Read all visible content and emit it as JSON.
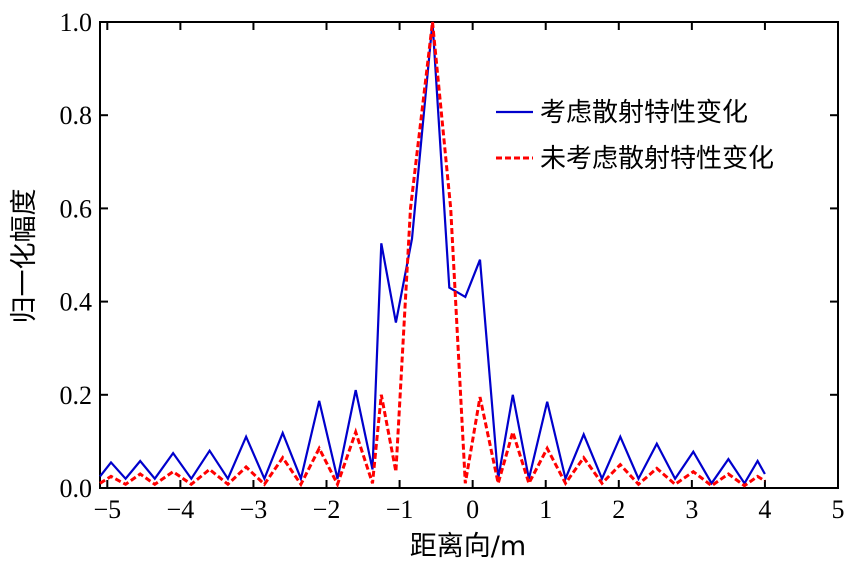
{
  "chart_data": {
    "type": "line",
    "xlabel": "距离向/m",
    "ylabel": "归一化幅度",
    "xlim": [
      -5.1,
      5.0
    ],
    "ylim": [
      0,
      1.0
    ],
    "xticks": [
      -5,
      -4,
      -3,
      -2,
      -1,
      0,
      1,
      2,
      3,
      4,
      5
    ],
    "xtick_labels": [
      "−5",
      "−4",
      "−3",
      "−2",
      "−1",
      "0",
      "1",
      "2",
      "3",
      "4",
      "5"
    ],
    "yticks": [
      0,
      0.2,
      0.4,
      0.6,
      0.8,
      1.0
    ],
    "ytick_labels": [
      "0.0",
      "0.2",
      "0.4",
      "0.6",
      "0.8",
      "1.0"
    ],
    "grid": false,
    "legend_position": "top-right",
    "series": [
      {
        "name": "考虑散射特性变化",
        "color": "#0000cc",
        "dash": "solid",
        "points": [
          [
            -5.1,
            0.025
          ],
          [
            -4.95,
            0.055
          ],
          [
            -4.75,
            0.02
          ],
          [
            -4.55,
            0.058
          ],
          [
            -4.35,
            0.02
          ],
          [
            -4.1,
            0.075
          ],
          [
            -3.85,
            0.02
          ],
          [
            -3.6,
            0.08
          ],
          [
            -3.35,
            0.02
          ],
          [
            -3.1,
            0.11
          ],
          [
            -2.85,
            0.02
          ],
          [
            -2.6,
            0.118
          ],
          [
            -2.35,
            0.02
          ],
          [
            -2.1,
            0.187
          ],
          [
            -1.85,
            0.02
          ],
          [
            -1.6,
            0.21
          ],
          [
            -1.37,
            0.04
          ],
          [
            -1.25,
            0.525
          ],
          [
            -1.05,
            0.355
          ],
          [
            -0.83,
            0.535
          ],
          [
            -0.55,
            1.0
          ],
          [
            -0.32,
            0.43
          ],
          [
            -0.1,
            0.41
          ],
          [
            0.1,
            0.49
          ],
          [
            0.35,
            0.02
          ],
          [
            0.55,
            0.2
          ],
          [
            0.77,
            0.02
          ],
          [
            1.02,
            0.185
          ],
          [
            1.27,
            0.02
          ],
          [
            1.52,
            0.115
          ],
          [
            1.77,
            0.02
          ],
          [
            2.02,
            0.11
          ],
          [
            2.27,
            0.02
          ],
          [
            2.52,
            0.095
          ],
          [
            2.77,
            0.02
          ],
          [
            3.02,
            0.078
          ],
          [
            3.27,
            0.01
          ],
          [
            3.5,
            0.062
          ],
          [
            3.72,
            0.01
          ],
          [
            3.9,
            0.058
          ],
          [
            4.0,
            0.03
          ]
        ]
      },
      {
        "name": "未考虑散射特性变化",
        "color": "#ff0000",
        "dash": "dashed",
        "points": [
          [
            -5.1,
            0.01
          ],
          [
            -4.95,
            0.025
          ],
          [
            -4.75,
            0.008
          ],
          [
            -4.55,
            0.03
          ],
          [
            -4.35,
            0.008
          ],
          [
            -4.1,
            0.035
          ],
          [
            -3.85,
            0.008
          ],
          [
            -3.6,
            0.04
          ],
          [
            -3.35,
            0.008
          ],
          [
            -3.1,
            0.045
          ],
          [
            -2.85,
            0.008
          ],
          [
            -2.6,
            0.065
          ],
          [
            -2.35,
            0.008
          ],
          [
            -2.1,
            0.085
          ],
          [
            -1.85,
            0.008
          ],
          [
            -1.6,
            0.12
          ],
          [
            -1.37,
            0.01
          ],
          [
            -1.25,
            0.2
          ],
          [
            -1.05,
            0.035
          ],
          [
            -0.85,
            0.6
          ],
          [
            -0.55,
            1.0
          ],
          [
            -0.3,
            0.6
          ],
          [
            -0.1,
            0.01
          ],
          [
            0.1,
            0.195
          ],
          [
            0.35,
            0.01
          ],
          [
            0.55,
            0.12
          ],
          [
            0.77,
            0.01
          ],
          [
            1.02,
            0.085
          ],
          [
            1.27,
            0.01
          ],
          [
            1.52,
            0.065
          ],
          [
            1.77,
            0.01
          ],
          [
            2.02,
            0.05
          ],
          [
            2.27,
            0.008
          ],
          [
            2.52,
            0.042
          ],
          [
            2.77,
            0.008
          ],
          [
            3.02,
            0.035
          ],
          [
            3.27,
            0.005
          ],
          [
            3.5,
            0.03
          ],
          [
            3.72,
            0.005
          ],
          [
            3.9,
            0.025
          ],
          [
            4.0,
            0.015
          ]
        ]
      }
    ]
  }
}
